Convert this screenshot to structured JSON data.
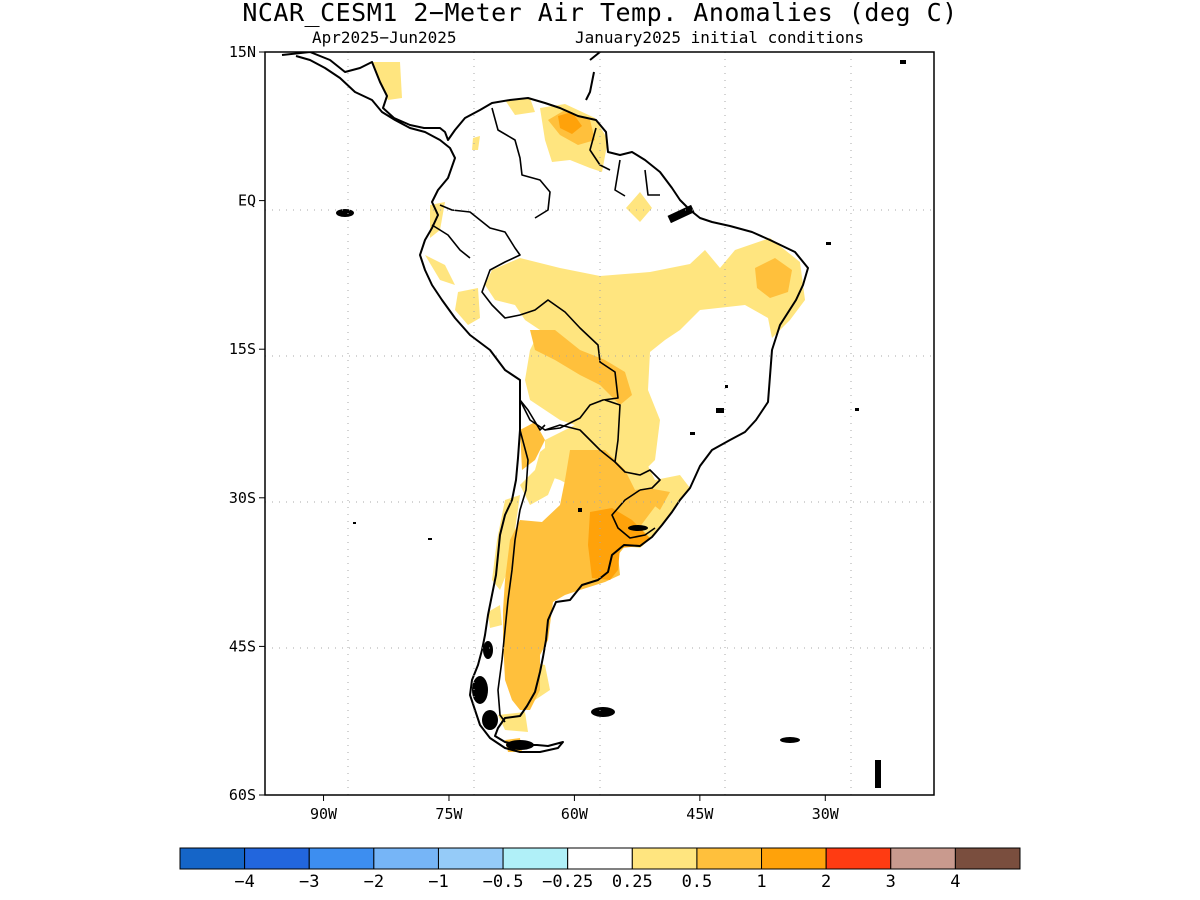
{
  "title": "NCAR_CESM1 2−Meter Air Temp. Anomalies (deg C)",
  "subtitle_left": "Apr2025−Jun2025",
  "subtitle_right": "January2025 initial conditions",
  "map": {
    "region": "South America",
    "lon_range": [
      -97,
      -17
    ],
    "lat_range": [
      -60,
      15
    ],
    "lat_ticks": [
      {
        "value": 15,
        "label": "15N"
      },
      {
        "value": 0,
        "label": "EQ"
      },
      {
        "value": -15,
        "label": "15S"
      },
      {
        "value": -30,
        "label": "30S"
      },
      {
        "value": -45,
        "label": "45S"
      },
      {
        "value": -60,
        "label": "60S"
      }
    ],
    "lon_ticks": [
      {
        "value": -90,
        "label": "90W"
      },
      {
        "value": -75,
        "label": "75W"
      },
      {
        "value": -60,
        "label": "60W"
      },
      {
        "value": -45,
        "label": "45W"
      },
      {
        "value": -30,
        "label": "30W"
      }
    ],
    "grid": "dotted"
  },
  "colorbar": {
    "colors": [
      "#1565c8",
      "#2266dd",
      "#3d8ef0",
      "#76b5f7",
      "#95cbf8",
      "#b0f0f8",
      "#ffffff",
      "#ffe57f",
      "#ffc03c",
      "#ffa20a",
      "#ff3b12",
      "#c99a8e",
      "#7a4e3e"
    ],
    "labels": [
      "−4",
      "−3",
      "−2",
      "−1",
      "−0.5",
      "−0.25",
      "0.25",
      "0.5",
      "1",
      "2",
      "3",
      "4"
    ]
  }
}
